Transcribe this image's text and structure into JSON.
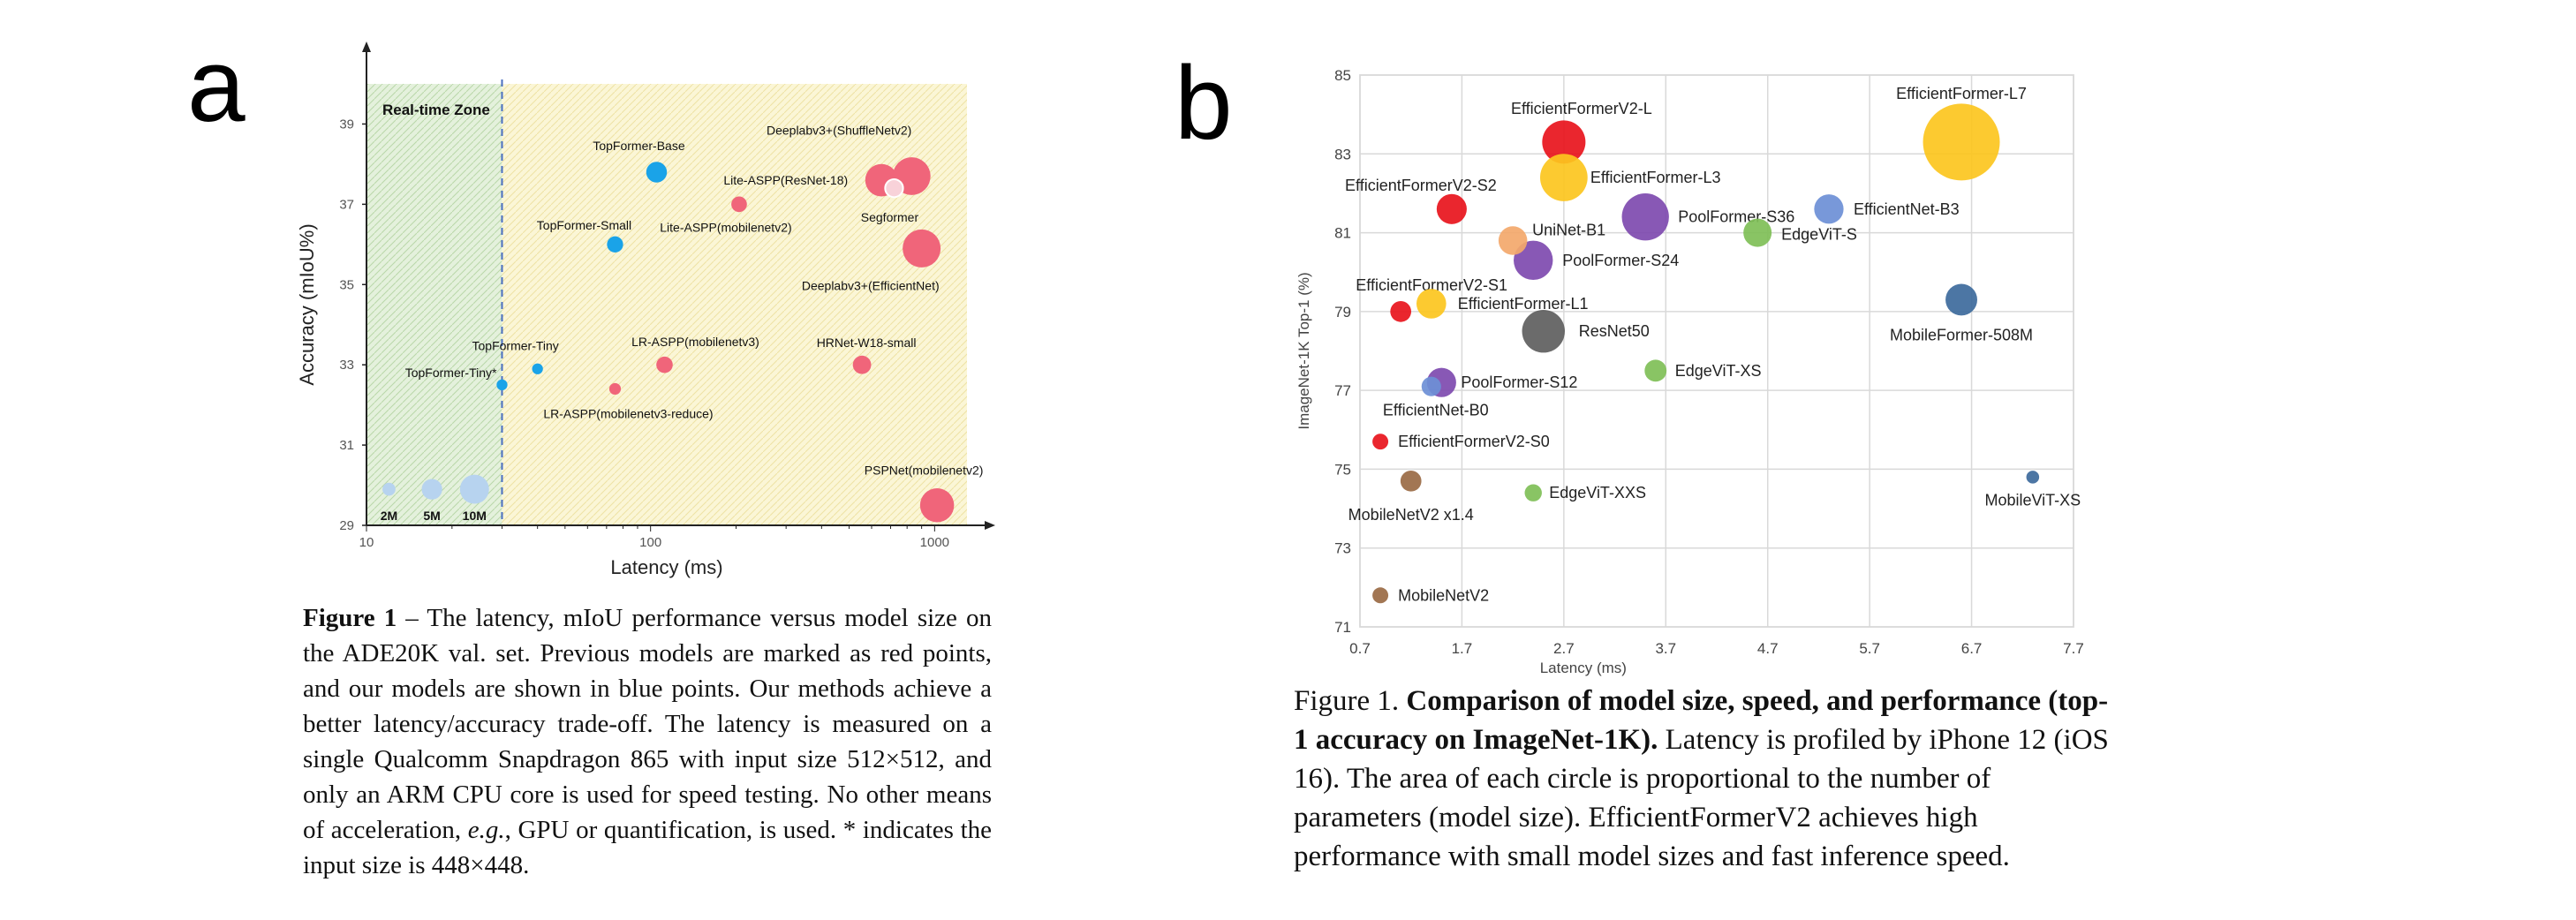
{
  "panel_a": {
    "letter": "a",
    "caption": {
      "label": "Figure 1",
      "text": " – The latency, mIoU performance versus model size on the ADE20K val. set. Previous models are marked as red points, and our models are shown in blue points. Our methods achieve a better latency/accuracy trade-off. The latency is measured on a single Qualcomm Snapdragon 865 with input size 512×512, and only an ARM CPU core is used for speed testing. No other means of acceleration, ",
      "eg": "e.g.",
      "text2": ", GPU or quantification, is used. * indicates the input size is 448×448."
    }
  },
  "panel_b": {
    "letter": "b",
    "caption": {
      "label": "Figure 1. ",
      "bold": "Comparison of model size, speed, and performance (top-1 accuracy on ImageNet-1K).",
      "text": " Latency is profiled by iPhone 12 (iOS 16). The area of each circle is proportional to the number of parameters (model size). EfficientFormerV2 achieves high performance with small model sizes and fast inference speed."
    }
  },
  "chart_data": [
    {
      "type": "scatter",
      "xlabel": "Latency (ms)",
      "ylabel": "Accuracy (mIoU%)",
      "x_scale": "log",
      "xlim": [
        10,
        1300
      ],
      "ylim": [
        29,
        40
      ],
      "x_ticks": [
        "10",
        "100",
        "1000"
      ],
      "y_ticks": [
        "29",
        "31",
        "33",
        "35",
        "37",
        "39"
      ],
      "zone_label": "Real-time Zone",
      "zone_boundary_ms": 30,
      "colors": {
        "ours": "#1aa3e8",
        "previous": "#f0657a",
        "size_legend": "#b7d3ef",
        "zone_left": "#e4f1dc",
        "zone_right": "#fbf6d6"
      },
      "size_legend": [
        {
          "label": "2M",
          "x": 12,
          "y": 29.9,
          "size": 2
        },
        {
          "label": "5M",
          "x": 17,
          "y": 29.9,
          "size": 5
        },
        {
          "label": "10M",
          "x": 24,
          "y": 29.9,
          "size": 10
        }
      ],
      "points": [
        {
          "label": "TopFormer-Base",
          "x": 105,
          "y": 37.8,
          "size": 5.1,
          "group": "ours"
        },
        {
          "label": "TopFormer-Small",
          "x": 75,
          "y": 36.0,
          "size": 3.1,
          "group": "ours"
        },
        {
          "label": "TopFormer-Tiny",
          "x": 40,
          "y": 32.9,
          "size": 1.4,
          "group": "ours"
        },
        {
          "label": "TopFormer-Tiny*",
          "x": 30,
          "y": 32.5,
          "size": 1.4,
          "group": "ours"
        },
        {
          "label": "Lite-ASPP(ResNet-18)",
          "x": 650,
          "y": 37.6,
          "size": 12.5,
          "group": "previous"
        },
        {
          "label": "Deeplabv3+(ShuffleNetv2)",
          "x": 830,
          "y": 37.7,
          "size": 16.9,
          "group": "previous"
        },
        {
          "label": "Segformer",
          "x": 720,
          "y": 37.4,
          "size": 3.8,
          "group": "previous"
        },
        {
          "label": "Lite-ASPP(mobilenetv2)",
          "x": 205,
          "y": 37.0,
          "size": 2.9,
          "group": "previous"
        },
        {
          "label": "Deeplabv3+(EfficientNet)",
          "x": 900,
          "y": 35.9,
          "size": 17.1,
          "group": "previous"
        },
        {
          "label": "LR-ASPP(mobilenetv3)",
          "x": 112,
          "y": 33.0,
          "size": 3.2,
          "group": "previous"
        },
        {
          "label": "LR-ASPP(mobilenetv3-reduce)",
          "x": 75,
          "y": 32.4,
          "size": 1.6,
          "group": "previous"
        },
        {
          "label": "HRNet-W18-small",
          "x": 555,
          "y": 33.0,
          "size": 4.0,
          "group": "previous"
        },
        {
          "label": "PSPNet(mobilenetv2)",
          "x": 1020,
          "y": 29.5,
          "size": 13.7,
          "group": "previous"
        }
      ]
    },
    {
      "type": "scatter",
      "xlabel": "Latency (ms)",
      "ylabel": "ImageNet-1K Top-1 (%)",
      "xlim": [
        0.7,
        7.7
      ],
      "ylim": [
        71,
        85
      ],
      "x_ticks": [
        "0.7",
        "1.7",
        "2.7",
        "3.7",
        "4.7",
        "5.7",
        "6.7",
        "7.7"
      ],
      "y_ticks": [
        "71",
        "73",
        "75",
        "77",
        "79",
        "81",
        "83",
        "85"
      ],
      "points": [
        {
          "label": "EfficientFormerV2-L",
          "x": 2.7,
          "y": 83.3,
          "size": 26.1,
          "color": "#e8141c"
        },
        {
          "label": "EfficientFormerV2-S2",
          "x": 1.6,
          "y": 81.6,
          "size": 12.6,
          "color": "#e8141c"
        },
        {
          "label": "EfficientFormerV2-S1",
          "x": 1.1,
          "y": 79.0,
          "size": 6.1,
          "color": "#e8141c"
        },
        {
          "label": "EfficientFormerV2-S0",
          "x": 0.9,
          "y": 75.7,
          "size": 3.5,
          "color": "#e8141c"
        },
        {
          "label": "EfficientFormer-L7",
          "x": 6.6,
          "y": 83.3,
          "size": 82.1,
          "color": "#fcc51e"
        },
        {
          "label": "EfficientFormer-L3",
          "x": 2.7,
          "y": 82.4,
          "size": 31.3,
          "color": "#fcc51e"
        },
        {
          "label": "EfficientFormer-L1",
          "x": 1.4,
          "y": 79.2,
          "size": 12.3,
          "color": "#fcc51e"
        },
        {
          "label": "PoolFormer-S36",
          "x": 3.5,
          "y": 81.4,
          "size": 30.9,
          "color": "#7e4aaf"
        },
        {
          "label": "PoolFormer-S24",
          "x": 2.4,
          "y": 80.3,
          "size": 21.4,
          "color": "#7e4aaf"
        },
        {
          "label": "PoolFormer-S12",
          "x": 1.5,
          "y": 77.2,
          "size": 11.9,
          "color": "#7e4aaf"
        },
        {
          "label": "UniNet-B1",
          "x": 2.2,
          "y": 80.8,
          "size": 11.5,
          "color": "#f3a86b"
        },
        {
          "label": "EfficientNet-B3",
          "x": 5.3,
          "y": 81.6,
          "size": 12.0,
          "color": "#6c8fd6"
        },
        {
          "label": "EfficientNet-B0",
          "x": 1.4,
          "y": 77.1,
          "size": 5.3,
          "color": "#6c8fd6"
        },
        {
          "label": "EdgeViT-S",
          "x": 4.6,
          "y": 81.0,
          "size": 11.1,
          "color": "#7fbf57"
        },
        {
          "label": "EdgeViT-XS",
          "x": 3.6,
          "y": 77.5,
          "size": 6.7,
          "color": "#7fbf57"
        },
        {
          "label": "EdgeViT-XXS",
          "x": 2.4,
          "y": 74.4,
          "size": 4.1,
          "color": "#7fbf57"
        },
        {
          "label": "ResNet50",
          "x": 2.5,
          "y": 78.5,
          "size": 25.5,
          "color": "#5e5e5e"
        },
        {
          "label": "MobileFormer-508M",
          "x": 6.6,
          "y": 79.3,
          "size": 14.0,
          "color": "#3d6a9c"
        },
        {
          "label": "MobileViT-XS",
          "x": 7.3,
          "y": 74.8,
          "size": 2.3,
          "color": "#3d6a9c"
        },
        {
          "label": "MobileNetV2 x1.4",
          "x": 1.2,
          "y": 74.7,
          "size": 6.1,
          "color": "#9a6a44"
        },
        {
          "label": "MobileNetV2",
          "x": 0.9,
          "y": 71.8,
          "size": 3.5,
          "color": "#9a6a44"
        }
      ]
    }
  ]
}
